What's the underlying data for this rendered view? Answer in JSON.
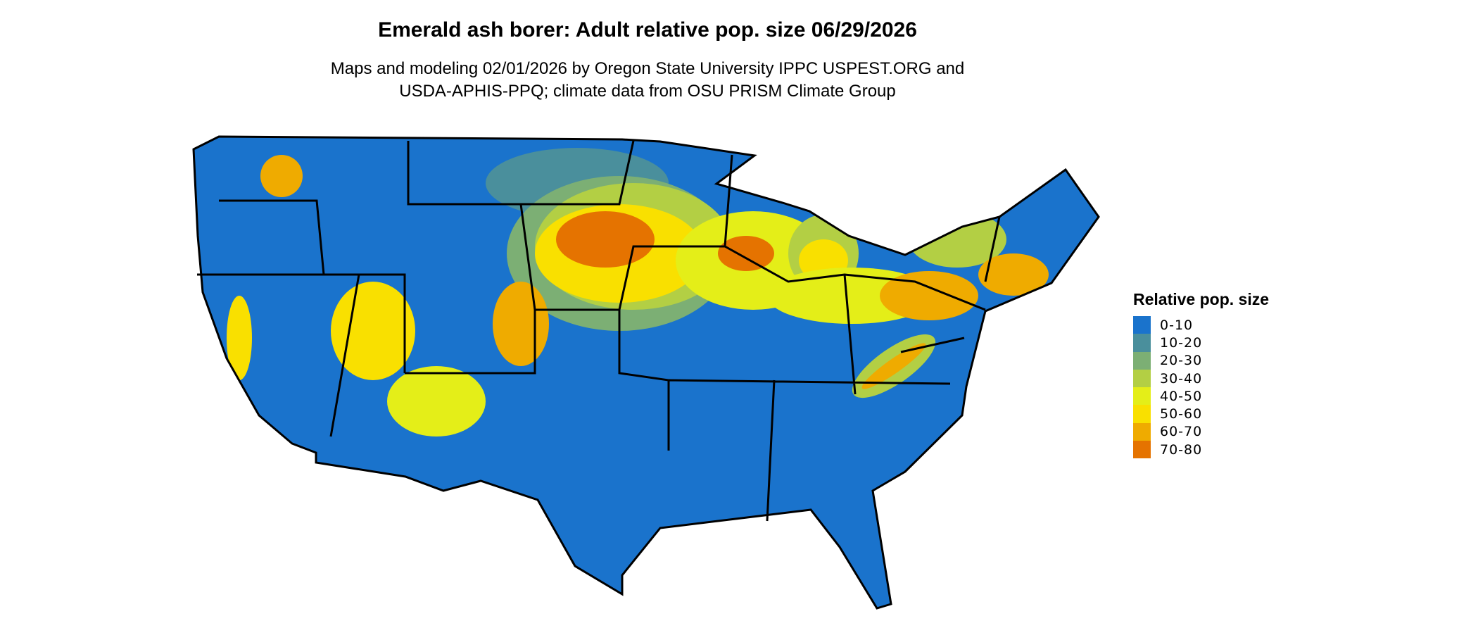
{
  "title": "Emerald ash borer: Adult relative pop. size 06/29/2026",
  "subtitle_lines": [
    "Maps and modeling 02/01/2026 by Oregon State University IPPC USPEST.ORG and",
    "USDA-APHIS-PPQ; climate data from OSU PRISM Climate Group"
  ],
  "legend": {
    "title": "Relative pop. size",
    "items": [
      {
        "label": "0-10",
        "color": "#1a73cc"
      },
      {
        "label": "10-20",
        "color": "#4a8f9c"
      },
      {
        "label": "20-30",
        "color": "#7caf74"
      },
      {
        "label": "30-40",
        "color": "#b3cf44"
      },
      {
        "label": "40-50",
        "color": "#e4ee18"
      },
      {
        "label": "50-60",
        "color": "#f9e000"
      },
      {
        "label": "60-70",
        "color": "#efab00"
      },
      {
        "label": "70-80",
        "color": "#e57300"
      }
    ]
  },
  "map": {
    "region": "Contiguous United States",
    "boundaries": "state outlines"
  }
}
